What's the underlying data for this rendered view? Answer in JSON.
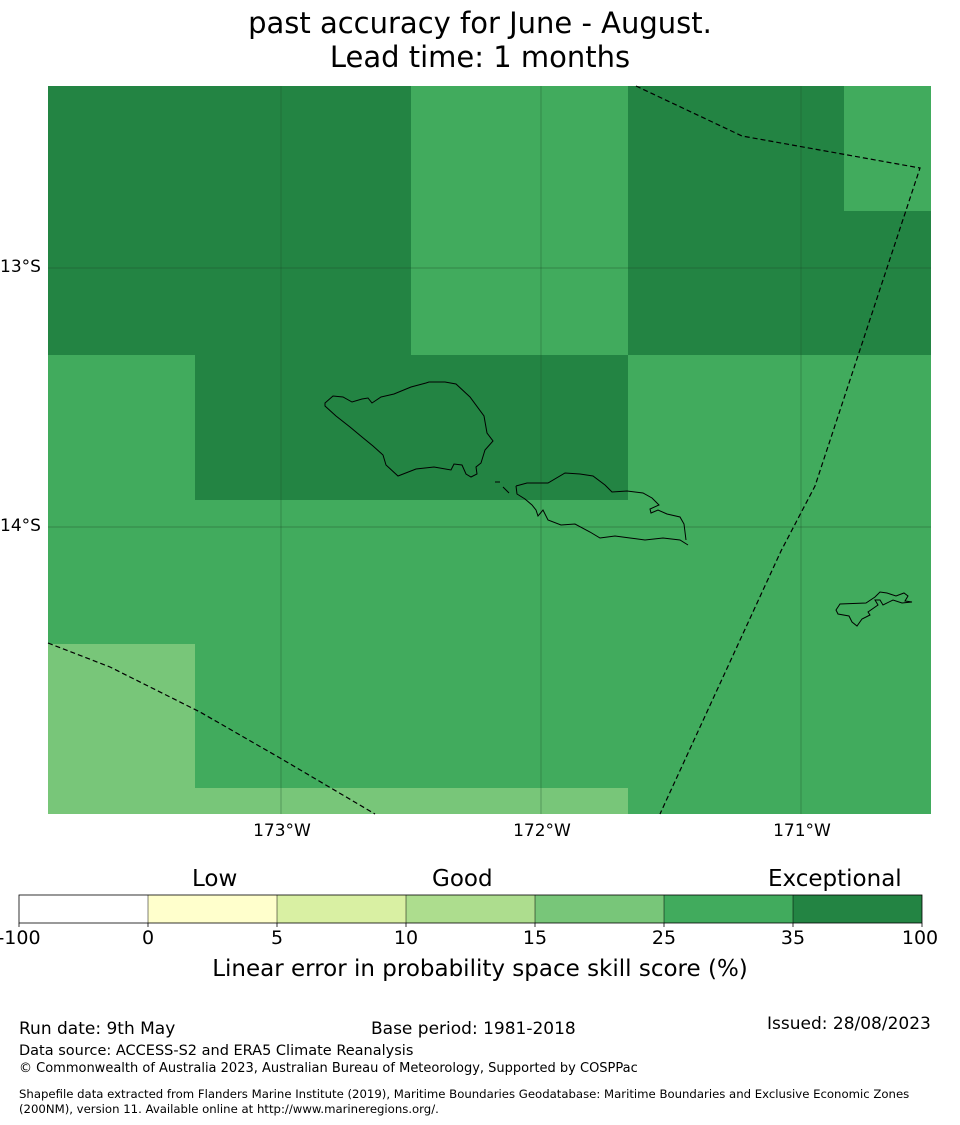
{
  "title": {
    "line1": "",
    "line2": "past accuracy for June - August.",
    "line3": "Lead time: 1 months"
  },
  "map": {
    "lat_ticks": [
      "13°S",
      "14°S"
    ],
    "lon_ticks": [
      "173°W",
      "172°W",
      "171°W"
    ],
    "colors": {
      "class_15_25": "#78c679",
      "class_25_35": "#41ab5d",
      "class_35_100": "#238443"
    }
  },
  "colorbar": {
    "categories": [
      "Low",
      "Good",
      "Exceptional"
    ],
    "ticks": [
      "-100",
      "0",
      "5",
      "10",
      "15",
      "25",
      "35",
      "100"
    ],
    "colors": [
      "#ffffff",
      "#ffffcc",
      "#d9f0a3",
      "#addd8e",
      "#78c679",
      "#41ab5d",
      "#238443"
    ],
    "label": "Linear error in probability space skill score (%)"
  },
  "footer": {
    "run_date": "Run date: 9th May",
    "base_period": "Base period: 1981-2018",
    "issued": "Issued: 28/08/2023",
    "data_source": "Data source: ACCESS-S2 and ERA5 Climate Reanalysis",
    "copyright": "© Commonwealth of Australia 2023, Australian Bureau of Meteorology, Supported by COSPPac",
    "shapefile_line1": "Shapefile data extracted from Flanders Marine Institute (2019), Maritime Boundaries Geodatabase: Maritime Boundaries and Exclusive Economic Zones",
    "shapefile_line2": "(200NM), version 11. Available online at http://www.marineregions.org/."
  }
}
